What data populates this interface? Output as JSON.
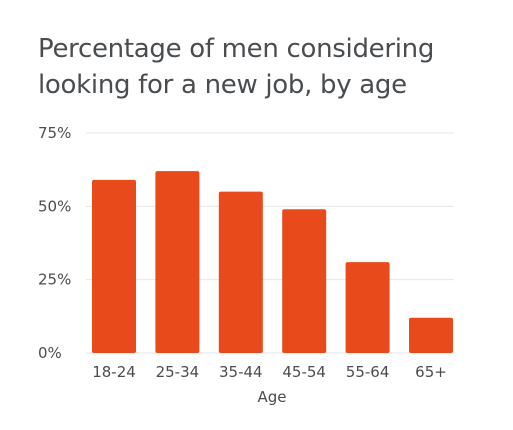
{
  "chart_data": {
    "type": "bar",
    "title_lines": [
      "Percentage of men considering",
      "looking for a new job, by age"
    ],
    "categories": [
      "18-24",
      "25-34",
      "35-44",
      "45-54",
      "55-64",
      "65+"
    ],
    "values": [
      59,
      62,
      55,
      49,
      31,
      12
    ],
    "y_ticks": [
      "0%",
      "25%",
      "50%",
      "75%"
    ],
    "y_tick_values": [
      0,
      25,
      50,
      75
    ],
    "xlabel": "Age",
    "ylabel": "",
    "ylim": [
      0,
      75
    ],
    "grid": true,
    "legend": "none",
    "bar_color": "#e84a1c",
    "grid_color": "#e6e6e6",
    "text_color": "#4a4d50"
  }
}
